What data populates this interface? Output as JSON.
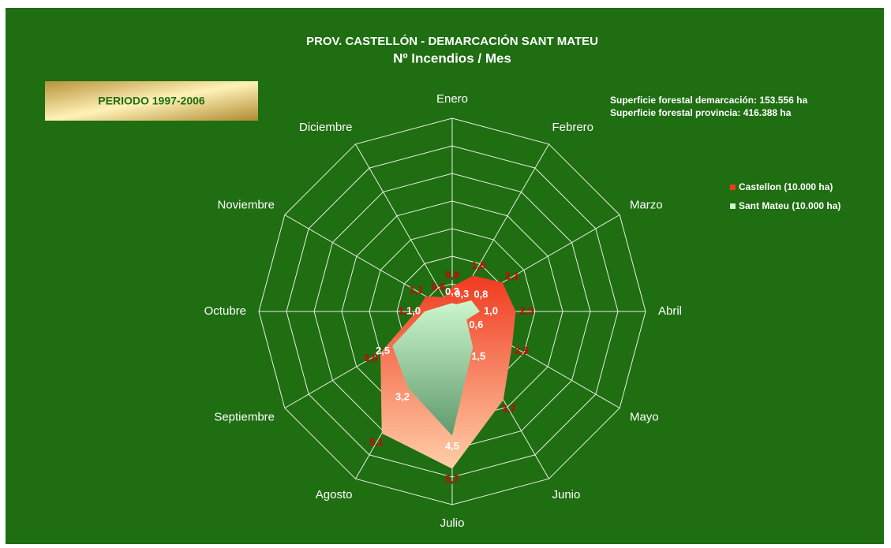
{
  "chart_data": {
    "type": "radar",
    "title": "PROV. CASTELLÓN  - DEMARCACIÓN  SANT MATEU",
    "subtitle": "Nº Incendios / Mes",
    "period": "PERIODO 1997-2006",
    "notes": [
      "Superficie forestal  demarcación:  153.556  ha",
      "Superficie forestal  provincia:  416.388  ha"
    ],
    "categories": [
      "Enero",
      "Febrero",
      "Marzo",
      "Abril",
      "Mayo",
      "Junio",
      "Julio",
      "Agosto",
      "Septiembre",
      "Octubre",
      "Noviembre",
      "Diciembre"
    ],
    "rlim": [
      0,
      7
    ],
    "rticks": [
      1,
      2,
      3,
      4,
      5,
      6,
      7
    ],
    "grid": true,
    "legend": "right",
    "series": [
      {
        "name": "Castellon (10.000 ha)",
        "color": "#f03a20",
        "color2": "#ffcfa8",
        "label_color": "#d40000",
        "values": [
          0.9,
          1.5,
          2.1,
          2.3,
          2.5,
          3.7,
          5.7,
          5.1,
          3.0,
          1.3,
          1.1,
          0.6
        ],
        "value_labels": [
          "0,9",
          "1,5",
          "2,1",
          "2,3",
          "2,5",
          "3,7",
          "5,7",
          "5,1",
          "3,0",
          "1,3",
          "1,1",
          "0,6"
        ]
      },
      {
        "name": "Sant Mateu (10.000 ha)",
        "color": "#cdf7cd",
        "color2": "#5f9a6c",
        "label_color": "#ffffff",
        "values": [
          0.3,
          0.3,
          0.8,
          1.0,
          0.6,
          1.5,
          4.5,
          3.2,
          2.5,
          1.0,
          0.4,
          0.3
        ],
        "value_labels": [
          "0,3",
          "0,3",
          "0,8",
          "1,0",
          "0,6",
          "1,5",
          "4,5",
          "3,2",
          "2,5",
          "1,0",
          null,
          null
        ]
      }
    ]
  }
}
